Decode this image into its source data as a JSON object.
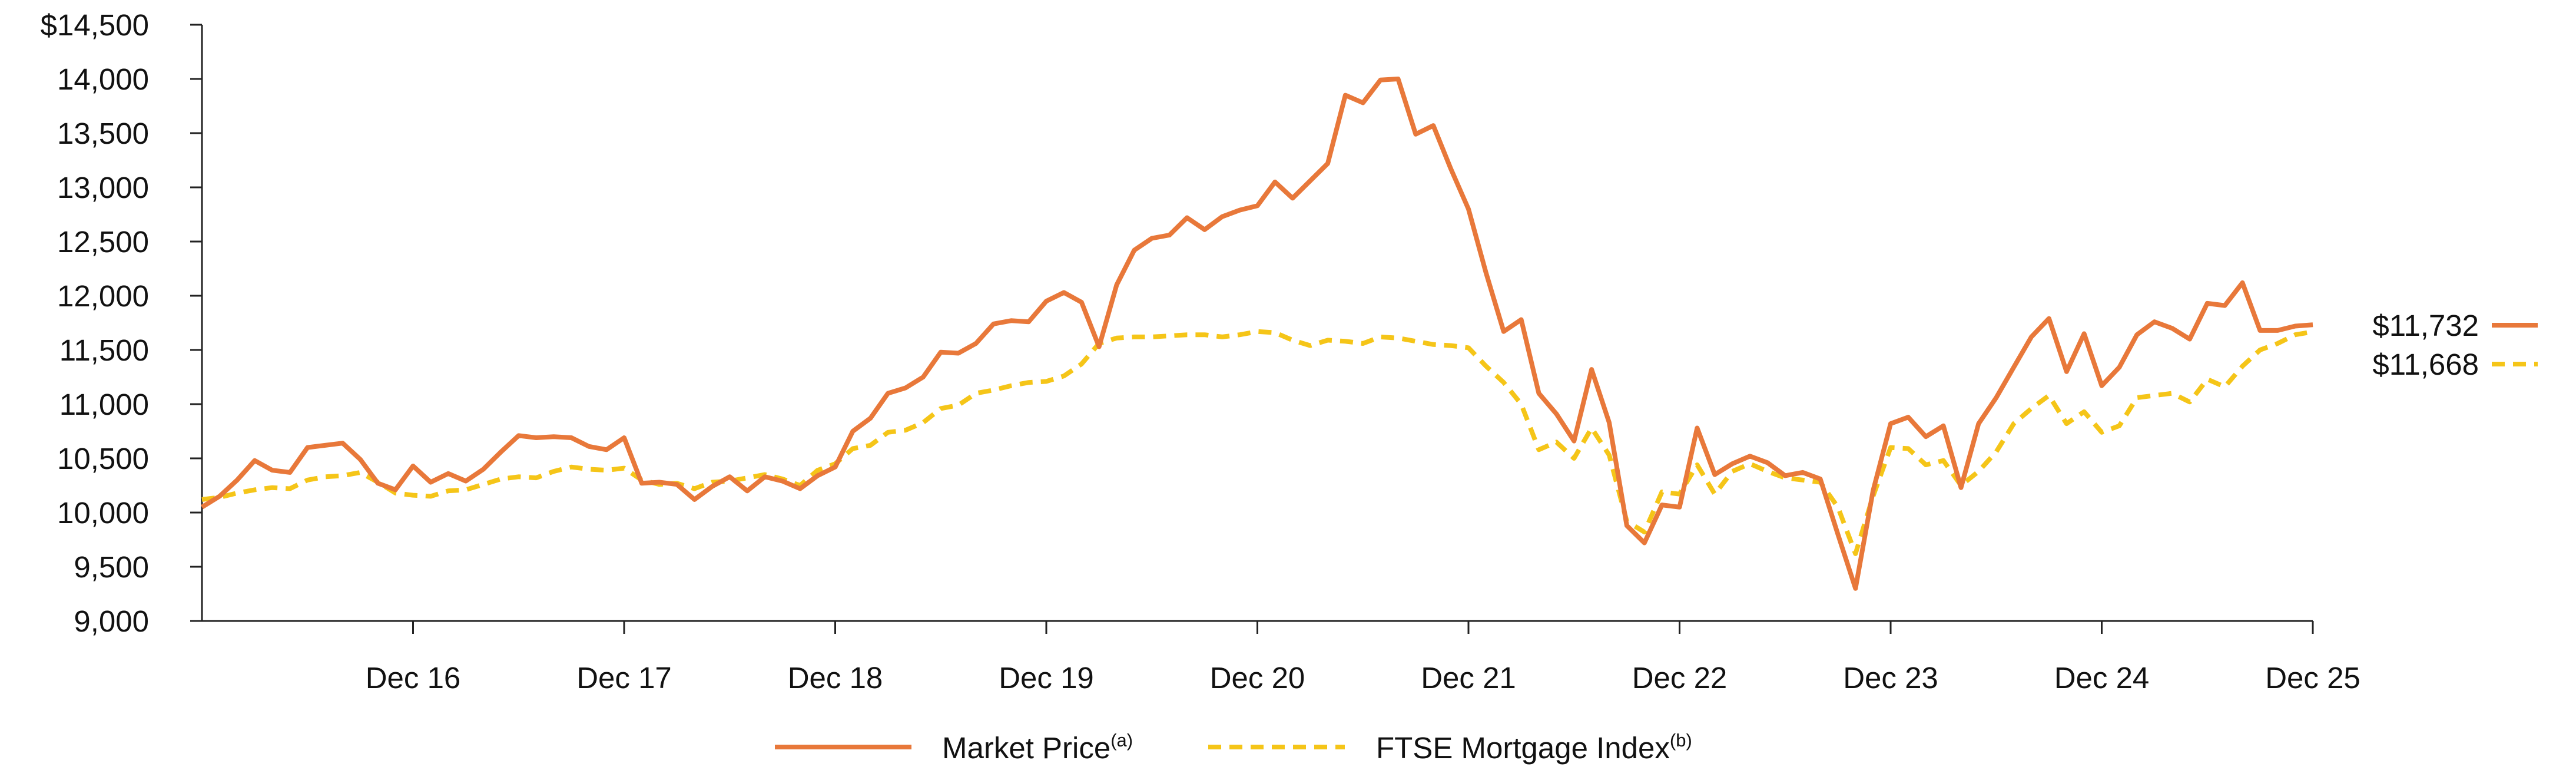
{
  "chart_data": {
    "type": "line",
    "title": "",
    "xlabel": "",
    "ylabel": "",
    "ylim": [
      9000,
      14500
    ],
    "xlim": [
      0,
      120
    ],
    "y_ticks": [
      {
        "value": 9000,
        "label": "9,000"
      },
      {
        "value": 9500,
        "label": "9,500"
      },
      {
        "value": 10000,
        "label": "10,000"
      },
      {
        "value": 10500,
        "label": "10,500"
      },
      {
        "value": 11000,
        "label": "11,000"
      },
      {
        "value": 11500,
        "label": "11,500"
      },
      {
        "value": 12000,
        "label": "12,000"
      },
      {
        "value": 12500,
        "label": "12,500"
      },
      {
        "value": 13000,
        "label": "13,000"
      },
      {
        "value": 13500,
        "label": "13,500"
      },
      {
        "value": 14000,
        "label": "14,000"
      },
      {
        "value": 14500,
        "label": "$14,500"
      }
    ],
    "x_ticks": [
      {
        "month": 12,
        "label": "Dec 16"
      },
      {
        "month": 24,
        "label": "Dec 17"
      },
      {
        "month": 36,
        "label": "Dec 18"
      },
      {
        "month": 48,
        "label": "Dec 19"
      },
      {
        "month": 60,
        "label": "Dec 20"
      },
      {
        "month": 72,
        "label": "Dec 21"
      },
      {
        "month": 84,
        "label": "Dec 22"
      },
      {
        "month": 96,
        "label": "Dec 23"
      },
      {
        "month": 108,
        "label": "Dec 24"
      },
      {
        "month": 120,
        "label": "Dec 25"
      }
    ],
    "series": [
      {
        "name": "Market Price",
        "superscript": "(a)",
        "color": "#E8783A",
        "dash": "solid",
        "end_label": "$11,732",
        "points": [
          [
            0,
            10050
          ],
          [
            1,
            10150
          ],
          [
            2,
            10300
          ],
          [
            3,
            10480
          ],
          [
            4,
            10390
          ],
          [
            5,
            10370
          ],
          [
            6,
            10600
          ],
          [
            7,
            10620
          ],
          [
            8,
            10640
          ],
          [
            9,
            10490
          ],
          [
            10,
            10270
          ],
          [
            11,
            10210
          ],
          [
            12,
            10430
          ],
          [
            13,
            10280
          ],
          [
            14,
            10360
          ],
          [
            15,
            10290
          ],
          [
            16,
            10400
          ],
          [
            17,
            10560
          ],
          [
            18,
            10710
          ],
          [
            19,
            10690
          ],
          [
            20,
            10700
          ],
          [
            21,
            10690
          ],
          [
            22,
            10610
          ],
          [
            23,
            10580
          ],
          [
            24,
            10690
          ],
          [
            25,
            10270
          ],
          [
            26,
            10280
          ],
          [
            27,
            10260
          ],
          [
            28,
            10120
          ],
          [
            29,
            10240
          ],
          [
            30,
            10330
          ],
          [
            31,
            10200
          ],
          [
            32,
            10330
          ],
          [
            33,
            10290
          ],
          [
            34,
            10220
          ],
          [
            35,
            10340
          ],
          [
            36,
            10420
          ],
          [
            37,
            10750
          ],
          [
            38,
            10870
          ],
          [
            39,
            11100
          ],
          [
            40,
            11150
          ],
          [
            41,
            11250
          ],
          [
            42,
            11480
          ],
          [
            43,
            11470
          ],
          [
            44,
            11560
          ],
          [
            45,
            11740
          ],
          [
            46,
            11770
          ],
          [
            47,
            11760
          ],
          [
            48,
            11950
          ],
          [
            49,
            12030
          ],
          [
            50,
            11940
          ],
          [
            51,
            11530
          ],
          [
            52,
            12100
          ],
          [
            53,
            12420
          ],
          [
            54,
            12530
          ],
          [
            55,
            12560
          ],
          [
            56,
            12720
          ],
          [
            57,
            12610
          ],
          [
            58,
            12730
          ],
          [
            59,
            12790
          ],
          [
            60,
            12830
          ],
          [
            61,
            13050
          ],
          [
            62,
            12900
          ],
          [
            63,
            13060
          ],
          [
            64,
            13220
          ],
          [
            65,
            13850
          ],
          [
            66,
            13780
          ],
          [
            67,
            13990
          ],
          [
            68,
            14000
          ],
          [
            69,
            13490
          ],
          [
            70,
            13570
          ],
          [
            71,
            13170
          ],
          [
            72,
            12800
          ],
          [
            73,
            12210
          ],
          [
            74,
            11670
          ],
          [
            75,
            11780
          ],
          [
            76,
            11100
          ],
          [
            77,
            10910
          ],
          [
            78,
            10660
          ],
          [
            79,
            11320
          ],
          [
            80,
            10830
          ],
          [
            81,
            9880
          ],
          [
            82,
            9720
          ],
          [
            83,
            10070
          ],
          [
            84,
            10050
          ],
          [
            85,
            10780
          ],
          [
            86,
            10350
          ],
          [
            87,
            10450
          ],
          [
            88,
            10520
          ],
          [
            89,
            10460
          ],
          [
            90,
            10340
          ],
          [
            91,
            10370
          ],
          [
            92,
            10310
          ],
          [
            93,
            9800
          ],
          [
            94,
            9300
          ],
          [
            95,
            10200
          ],
          [
            96,
            10820
          ],
          [
            97,
            10880
          ],
          [
            98,
            10700
          ],
          [
            99,
            10800
          ],
          [
            100,
            10230
          ],
          [
            101,
            10820
          ],
          [
            102,
            11060
          ],
          [
            103,
            11340
          ],
          [
            104,
            11620
          ],
          [
            105,
            11790
          ],
          [
            106,
            11300
          ],
          [
            107,
            11650
          ],
          [
            108,
            11170
          ],
          [
            109,
            11340
          ],
          [
            110,
            11640
          ],
          [
            111,
            11760
          ],
          [
            112,
            11700
          ],
          [
            113,
            11600
          ],
          [
            114,
            11930
          ],
          [
            115,
            11910
          ],
          [
            116,
            12120
          ],
          [
            117,
            11680
          ],
          [
            118,
            11680
          ],
          [
            119,
            11720
          ],
          [
            120,
            11732
          ]
        ]
      },
      {
        "name": "FTSE Mortgage Index",
        "superscript": "(b)",
        "color": "#F5C518",
        "dash": "dashed",
        "end_label": "$11,668",
        "points": [
          [
            0,
            10120
          ],
          [
            1,
            10140
          ],
          [
            2,
            10180
          ],
          [
            3,
            10210
          ],
          [
            4,
            10230
          ],
          [
            5,
            10220
          ],
          [
            6,
            10300
          ],
          [
            7,
            10330
          ],
          [
            8,
            10340
          ],
          [
            9,
            10370
          ],
          [
            10,
            10280
          ],
          [
            11,
            10180
          ],
          [
            12,
            10160
          ],
          [
            13,
            10150
          ],
          [
            14,
            10200
          ],
          [
            15,
            10210
          ],
          [
            16,
            10260
          ],
          [
            17,
            10310
          ],
          [
            18,
            10330
          ],
          [
            19,
            10320
          ],
          [
            20,
            10380
          ],
          [
            21,
            10420
          ],
          [
            22,
            10400
          ],
          [
            23,
            10390
          ],
          [
            24,
            10410
          ],
          [
            25,
            10300
          ],
          [
            26,
            10260
          ],
          [
            27,
            10270
          ],
          [
            28,
            10220
          ],
          [
            29,
            10280
          ],
          [
            30,
            10290
          ],
          [
            31,
            10320
          ],
          [
            32,
            10350
          ],
          [
            33,
            10310
          ],
          [
            34,
            10250
          ],
          [
            35,
            10390
          ],
          [
            36,
            10450
          ],
          [
            37,
            10590
          ],
          [
            38,
            10620
          ],
          [
            39,
            10740
          ],
          [
            40,
            10760
          ],
          [
            41,
            10830
          ],
          [
            42,
            10960
          ],
          [
            43,
            10990
          ],
          [
            44,
            11100
          ],
          [
            45,
            11130
          ],
          [
            46,
            11170
          ],
          [
            47,
            11200
          ],
          [
            48,
            11210
          ],
          [
            49,
            11260
          ],
          [
            50,
            11370
          ],
          [
            51,
            11560
          ],
          [
            52,
            11610
          ],
          [
            53,
            11620
          ],
          [
            54,
            11620
          ],
          [
            55,
            11630
          ],
          [
            56,
            11640
          ],
          [
            57,
            11640
          ],
          [
            58,
            11620
          ],
          [
            59,
            11640
          ],
          [
            60,
            11670
          ],
          [
            61,
            11660
          ],
          [
            62,
            11590
          ],
          [
            63,
            11540
          ],
          [
            64,
            11590
          ],
          [
            65,
            11580
          ],
          [
            66,
            11560
          ],
          [
            67,
            11620
          ],
          [
            68,
            11610
          ],
          [
            69,
            11580
          ],
          [
            70,
            11550
          ],
          [
            71,
            11540
          ],
          [
            72,
            11520
          ],
          [
            73,
            11350
          ],
          [
            74,
            11200
          ],
          [
            75,
            11000
          ],
          [
            76,
            10580
          ],
          [
            77,
            10650
          ],
          [
            78,
            10500
          ],
          [
            79,
            10780
          ],
          [
            80,
            10530
          ],
          [
            81,
            9920
          ],
          [
            82,
            9820
          ],
          [
            83,
            10190
          ],
          [
            84,
            10170
          ],
          [
            85,
            10440
          ],
          [
            86,
            10170
          ],
          [
            87,
            10380
          ],
          [
            88,
            10450
          ],
          [
            89,
            10380
          ],
          [
            90,
            10320
          ],
          [
            91,
            10300
          ],
          [
            92,
            10280
          ],
          [
            93,
            10050
          ],
          [
            94,
            9620
          ],
          [
            95,
            10150
          ],
          [
            96,
            10600
          ],
          [
            97,
            10590
          ],
          [
            98,
            10440
          ],
          [
            99,
            10480
          ],
          [
            100,
            10250
          ],
          [
            101,
            10380
          ],
          [
            102,
            10560
          ],
          [
            103,
            10820
          ],
          [
            104,
            10960
          ],
          [
            105,
            11080
          ],
          [
            106,
            10820
          ],
          [
            107,
            10930
          ],
          [
            108,
            10740
          ],
          [
            109,
            10800
          ],
          [
            110,
            11060
          ],
          [
            111,
            11080
          ],
          [
            112,
            11100
          ],
          [
            113,
            11020
          ],
          [
            114,
            11230
          ],
          [
            115,
            11160
          ],
          [
            116,
            11350
          ],
          [
            117,
            11500
          ],
          [
            118,
            11560
          ],
          [
            119,
            11640
          ],
          [
            120,
            11668
          ]
        ]
      }
    ],
    "legend": "bottom-center"
  }
}
